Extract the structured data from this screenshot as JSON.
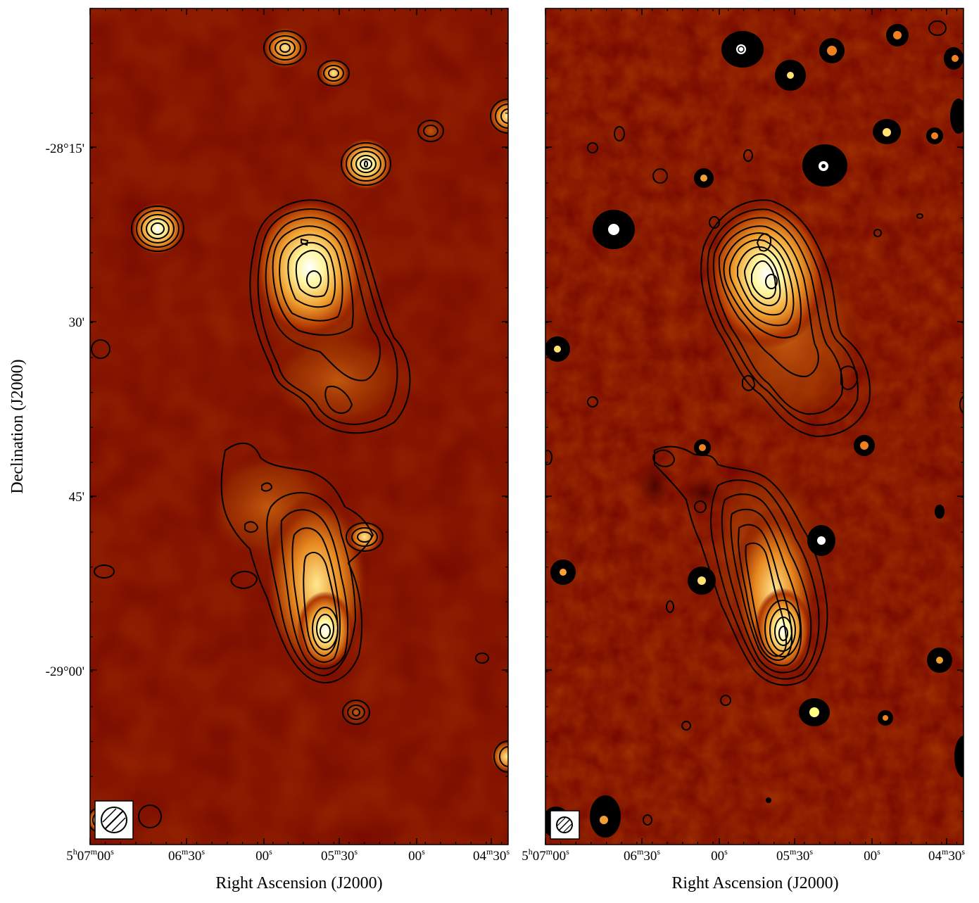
{
  "figure": {
    "y_axis_label": "Declination (J2000)",
    "dec_ticks": [
      {
        "label": "-28°15'"
      },
      {
        "label": "30'"
      },
      {
        "label": "45'"
      },
      {
        "label": "-29°00'"
      }
    ],
    "panels": [
      {
        "id": "left",
        "x_axis_label": "Right Ascension (J2000)",
        "ra_ticks": [
          {
            "h": "5",
            "hu": "h",
            "m": "07",
            "mu": "m",
            "s": "00",
            "su": "s"
          },
          {
            "h": "",
            "hu": "",
            "m": "06",
            "mu": "m",
            "s": "30",
            "su": "s"
          },
          {
            "h": "",
            "hu": "",
            "m": "",
            "mu": "",
            "s": "00",
            "su": "s"
          },
          {
            "h": "",
            "hu": "",
            "m": "05",
            "mu": "m",
            "s": "30",
            "su": "s"
          },
          {
            "h": "",
            "hu": "",
            "m": "",
            "mu": "",
            "s": "00",
            "su": "s"
          },
          {
            "h": "",
            "hu": "",
            "m": "04",
            "mu": "m",
            "s": "30",
            "su": "s"
          }
        ],
        "resolution": "low"
      },
      {
        "id": "right",
        "x_axis_label": "Right Ascension (J2000)",
        "ra_ticks": [
          {
            "h": "5",
            "hu": "h",
            "m": "07",
            "mu": "m",
            "s": "00",
            "su": "s"
          },
          {
            "h": "",
            "hu": "",
            "m": "06",
            "mu": "m",
            "s": "30",
            "su": "s"
          },
          {
            "h": "",
            "hu": "",
            "m": "",
            "mu": "",
            "s": "00",
            "su": "s"
          },
          {
            "h": "",
            "hu": "",
            "m": "05",
            "mu": "m",
            "s": "30",
            "su": "s"
          },
          {
            "h": "",
            "hu": "",
            "m": "",
            "mu": "",
            "s": "00",
            "su": "s"
          },
          {
            "h": "",
            "hu": "",
            "m": "04",
            "mu": "m",
            "s": "30",
            "su": "s"
          }
        ],
        "resolution": "high"
      }
    ],
    "colors": {
      "background": "#7a0a00",
      "colormap": [
        "#5a0000",
        "#8a1a00",
        "#c85400",
        "#f09020",
        "#ffd060",
        "#ffffc0",
        "#ffffff"
      ],
      "contour": "#000000"
    }
  }
}
